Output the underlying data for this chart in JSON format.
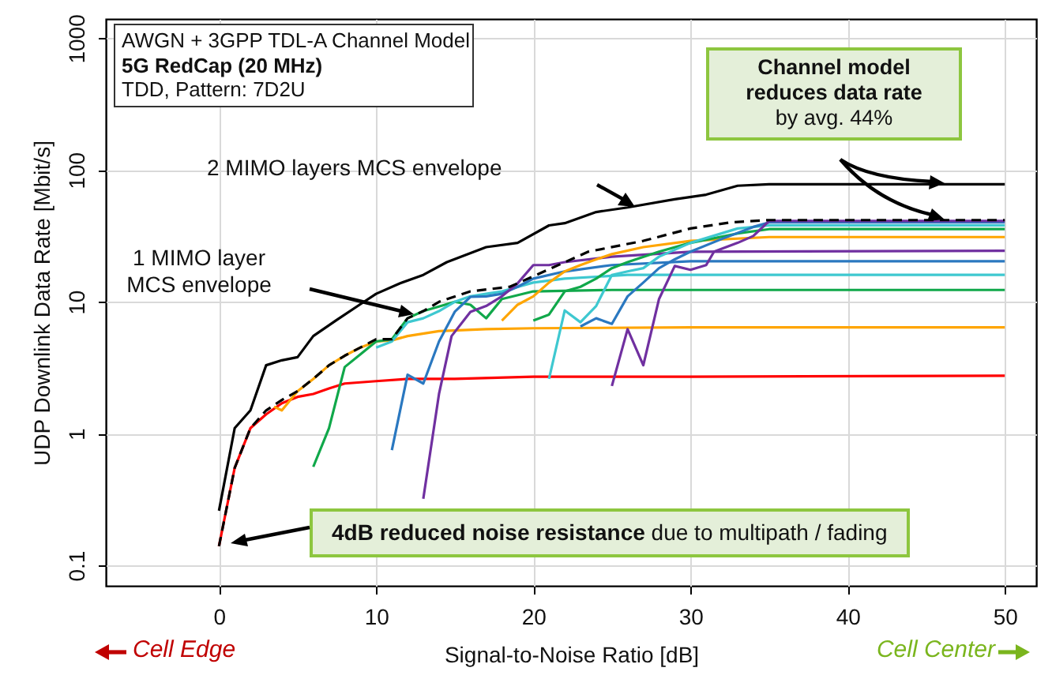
{
  "chart_data": {
    "type": "line",
    "xlabel": "Signal-to-Noise Ratio [dB]",
    "ylabel": "UDP Downlink Data Rate [Mbit/s]",
    "xlim": [
      -7.2,
      52
    ],
    "xticks": [
      0,
      10,
      20,
      30,
      40,
      50
    ],
    "ylim": [
      0.07,
      1400
    ],
    "yticks": [
      0.1,
      1,
      10,
      100,
      1000
    ],
    "log": "y",
    "grid": true,
    "marker": "none",
    "annotations": [
      "AWGN + 3GPP TDL-A Channel Model",
      "5G RedCap (20 MHz)",
      "TDD, Pattern: 7D2U",
      "2 MIMO layers MCS envelope",
      "1 MIMO layer MCS envelope",
      "Channel model reduces data rate",
      "by avg. 44%",
      "4dB reduced noise resistance",
      "due to multipath / fading",
      "Cell Edge",
      "Cell Center"
    ],
    "series": [
      {
        "color": "#ff0000",
        "line_style": "solid",
        "x": [
          0,
          1,
          2,
          3,
          4,
          5,
          6,
          7,
          8,
          10,
          12,
          15,
          20,
          30,
          50
        ],
        "values": [
          0.14,
          0.55,
          1.1,
          1.4,
          1.7,
          1.9,
          2.0,
          2.2,
          2.4,
          2.5,
          2.6,
          2.6,
          2.7,
          2.7,
          2.75
        ]
      },
      {
        "color": "#ffa500",
        "line_style": "solid",
        "x": [
          3.5,
          4,
          5,
          6,
          7,
          8,
          9,
          10,
          11,
          12,
          14,
          17,
          20,
          30,
          50
        ],
        "values": [
          1.6,
          1.5,
          2.1,
          2.6,
          3.3,
          3.9,
          4.5,
          5.0,
          5.1,
          5.5,
          6.0,
          6.2,
          6.3,
          6.4,
          6.4
        ]
      },
      {
        "color": "#10a84a",
        "line_style": "solid",
        "x": [
          6,
          7,
          8,
          9,
          10,
          11,
          12,
          13,
          14,
          15,
          16,
          17,
          18,
          20,
          25,
          50
        ],
        "values": [
          0.56,
          1.1,
          3.2,
          4.0,
          5.0,
          5.2,
          7.5,
          8.5,
          9.2,
          10,
          9.5,
          7.5,
          10.5,
          12,
          12.3,
          12.3
        ]
      },
      {
        "color": "#3ec8d0",
        "line_style": "solid",
        "x": [
          10,
          11,
          12,
          13,
          14,
          15,
          16,
          17,
          18,
          20,
          22,
          26,
          50
        ],
        "values": [
          4.5,
          5,
          7,
          7.5,
          8.5,
          10,
          11,
          11.5,
          12,
          14,
          15,
          16,
          16
        ]
      },
      {
        "color": "#2a78c0",
        "line_style": "solid",
        "x": [
          11,
          12,
          13,
          14,
          15,
          16,
          17,
          18,
          19,
          20,
          22,
          25,
          30,
          50
        ],
        "values": [
          0.75,
          2.8,
          2.4,
          5,
          8.4,
          10.9,
          11,
          11.5,
          13,
          15,
          17,
          19,
          20.3,
          20.3
        ]
      },
      {
        "color": "#7030a0",
        "line_style": "solid",
        "x": [
          13,
          14,
          14.8,
          16,
          17,
          18,
          19,
          20,
          21,
          22,
          25,
          30,
          50
        ],
        "values": [
          0.32,
          2,
          5.5,
          8.4,
          9.3,
          11,
          13.8,
          19,
          19,
          20,
          22,
          24,
          24.4
        ]
      },
      {
        "color": "#ffa500",
        "line_style": "solid",
        "x": [
          18,
          19,
          20,
          21,
          22,
          23,
          24,
          25,
          27,
          30,
          35,
          50
        ],
        "values": [
          7.2,
          9.5,
          11,
          14,
          17,
          19,
          21,
          23,
          26,
          29,
          31,
          31
        ]
      },
      {
        "color": "#10a84a",
        "line_style": "solid",
        "x": [
          20,
          21,
          22,
          23,
          24,
          25,
          26,
          28,
          30,
          33,
          35,
          50
        ],
        "values": [
          7.2,
          8,
          12,
          13,
          15,
          18,
          20,
          24,
          28,
          33,
          35.6,
          35.6
        ]
      },
      {
        "color": "#3ec8d0",
        "line_style": "solid",
        "x": [
          21,
          22,
          23,
          24,
          25,
          26,
          27,
          28,
          30,
          33,
          35,
          50
        ],
        "values": [
          2.6,
          8.6,
          7,
          9.3,
          16,
          17,
          18,
          22,
          28,
          36,
          38,
          38
        ]
      },
      {
        "color": "#2a78c0",
        "line_style": "solid",
        "x": [
          23,
          24,
          25,
          26,
          27,
          28,
          29,
          30,
          32,
          34,
          35,
          50
        ],
        "values": [
          6.5,
          7.5,
          6.8,
          11,
          14,
          18,
          21,
          24,
          30,
          37,
          40,
          40
        ]
      },
      {
        "color": "#7030a0",
        "line_style": "solid",
        "x": [
          25,
          26,
          27,
          28,
          29,
          30,
          31,
          31.5,
          33,
          34,
          35,
          50
        ],
        "values": [
          2.3,
          6.2,
          3.3,
          10.5,
          18.7,
          17.5,
          19,
          24,
          28,
          31.6,
          41,
          41
        ]
      },
      {
        "color": "#000000",
        "line_style": "dashed",
        "x": [
          0,
          1,
          2,
          3,
          4,
          5,
          6,
          7,
          8,
          9,
          10,
          11,
          12,
          13,
          14,
          16,
          18.5,
          20.5,
          23.5,
          27,
          30,
          32.5,
          35,
          50
        ],
        "values": [
          0.14,
          0.55,
          1.1,
          1.5,
          1.8,
          2.1,
          2.6,
          3.3,
          3.9,
          4.5,
          5.2,
          5.2,
          7.5,
          8.5,
          10,
          12,
          13,
          16.6,
          24,
          29,
          36,
          40,
          41.7,
          41.7
        ]
      },
      {
        "color": "#000000",
        "line_style": "solid",
        "x": [
          0,
          1,
          2,
          3,
          4,
          5,
          6,
          7.5,
          9,
          10,
          11.5,
          13,
          14.5,
          17,
          19,
          21,
          22,
          24,
          26,
          29,
          31,
          33,
          35,
          50
        ],
        "values": [
          0.26,
          1.1,
          1.5,
          3.3,
          3.6,
          3.8,
          5.5,
          7.3,
          9.6,
          11.5,
          13.8,
          16,
          20,
          26,
          28,
          38,
          39.5,
          48,
          52,
          60,
          65,
          76,
          78,
          78
        ]
      }
    ]
  }
}
